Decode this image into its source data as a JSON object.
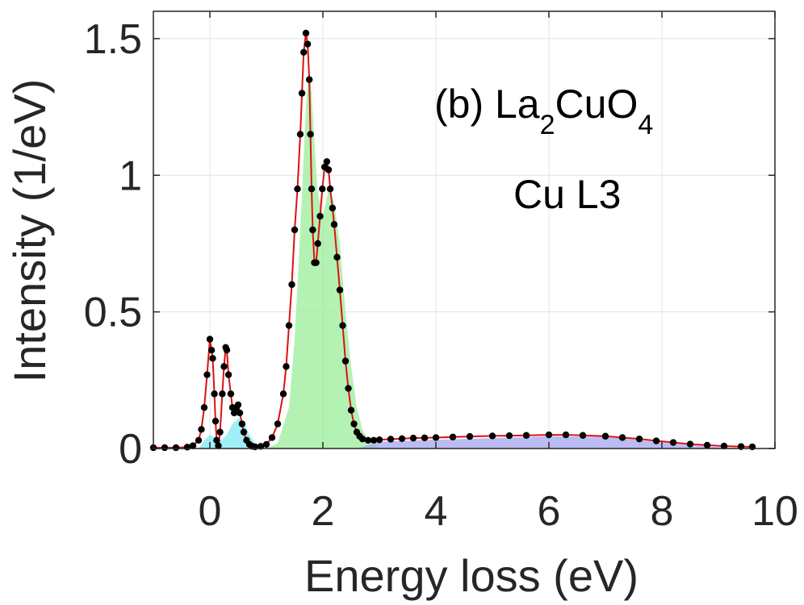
{
  "chart_data": {
    "type": "line",
    "xlabel": "Energy loss (eV)",
    "ylabel": "Intensity (1/eV)",
    "xlim": [
      -1,
      10
    ],
    "ylim": [
      0,
      1.6
    ],
    "xticks": [
      0,
      2,
      4,
      6,
      8,
      10
    ],
    "yticks": [
      0,
      0.5,
      1,
      1.5
    ],
    "xtick_labels": [
      "0",
      "2",
      "4",
      "6",
      "8",
      "10"
    ],
    "ytick_labels": [
      "0",
      "0.5",
      "1",
      "1.5"
    ],
    "grid": true,
    "annotation": {
      "prefix": "(b) La",
      "sub1": "2",
      "mid": "CuO",
      "sub2": "4",
      "line2": "Cu L3"
    },
    "components": [
      {
        "color": "#7fe9f5",
        "x": [
          -0.2,
          -0.1,
          0.0,
          0.1,
          0.2,
          0.3,
          0.35,
          0.4,
          0.5,
          0.55,
          0.6,
          0.7,
          0.8,
          0.9
        ],
        "values": [
          0,
          0.03,
          0.05,
          0.04,
          0.03,
          0.05,
          0.07,
          0.09,
          0.11,
          0.11,
          0.1,
          0.05,
          0.02,
          0
        ]
      },
      {
        "color": "#99ee99",
        "x": [
          1.0,
          1.2,
          1.4,
          1.5,
          1.6,
          1.7,
          1.75,
          1.8,
          1.9,
          2.0,
          2.1,
          2.2,
          2.3,
          2.4,
          2.5,
          2.6,
          2.7,
          2.8,
          3.0
        ],
        "values": [
          0,
          0.02,
          0.15,
          0.4,
          0.8,
          1.25,
          1.4,
          1.3,
          0.95,
          0.85,
          0.95,
          0.9,
          0.75,
          0.5,
          0.3,
          0.15,
          0.07,
          0.03,
          0
        ]
      },
      {
        "color": "#a6a6f0",
        "x": [
          2.6,
          3.0,
          4.0,
          5.0,
          6.0,
          7.0,
          7.5,
          8.0,
          8.5,
          9.0,
          9.5
        ],
        "values": [
          0,
          0.025,
          0.032,
          0.038,
          0.045,
          0.042,
          0.033,
          0.022,
          0.012,
          0.005,
          0
        ]
      }
    ],
    "series": [
      {
        "style": "red line with black markers",
        "line_color": "#dd1111",
        "marker_color": "#000000",
        "x": [
          -1.0,
          -0.8,
          -0.6,
          -0.4,
          -0.3,
          -0.2,
          -0.15,
          -0.1,
          -0.05,
          0.0,
          0.03,
          0.05,
          0.08,
          0.1,
          0.12,
          0.15,
          0.18,
          0.22,
          0.25,
          0.28,
          0.3,
          0.33,
          0.37,
          0.4,
          0.43,
          0.47,
          0.5,
          0.53,
          0.57,
          0.6,
          0.65,
          0.7,
          0.75,
          0.8,
          0.9,
          1.0,
          1.1,
          1.2,
          1.3,
          1.35,
          1.4,
          1.45,
          1.5,
          1.55,
          1.6,
          1.63,
          1.66,
          1.7,
          1.73,
          1.76,
          1.78,
          1.8,
          1.82,
          1.85,
          1.88,
          1.91,
          1.95,
          1.99,
          2.03,
          2.07,
          2.1,
          2.13,
          2.17,
          2.2,
          2.25,
          2.3,
          2.35,
          2.4,
          2.45,
          2.5,
          2.55,
          2.6,
          2.65,
          2.7,
          2.8,
          2.9,
          3.0,
          3.2,
          3.4,
          3.6,
          3.8,
          4.0,
          4.3,
          4.6,
          5.0,
          5.3,
          5.6,
          6.0,
          6.3,
          6.6,
          7.0,
          7.3,
          7.6,
          7.9,
          8.2,
          8.5,
          8.8,
          9.1,
          9.4,
          9.6
        ],
        "values": [
          0.003,
          0.003,
          0.003,
          0.005,
          0.01,
          0.03,
          0.07,
          0.15,
          0.27,
          0.4,
          0.36,
          0.33,
          0.2,
          0.1,
          0.03,
          0.01,
          0.06,
          0.2,
          0.3,
          0.37,
          0.36,
          0.27,
          0.2,
          0.15,
          0.13,
          0.15,
          0.16,
          0.13,
          0.09,
          0.06,
          0.03,
          0.015,
          0.008,
          0.006,
          0.008,
          0.015,
          0.04,
          0.09,
          0.2,
          0.3,
          0.45,
          0.6,
          0.8,
          0.95,
          1.15,
          1.3,
          1.45,
          1.52,
          1.48,
          1.35,
          1.15,
          0.95,
          0.8,
          0.68,
          0.68,
          0.75,
          0.85,
          0.95,
          1.03,
          1.05,
          1.02,
          0.95,
          0.88,
          0.82,
          0.7,
          0.58,
          0.45,
          0.32,
          0.22,
          0.14,
          0.09,
          0.06,
          0.045,
          0.035,
          0.03,
          0.03,
          0.032,
          0.034,
          0.036,
          0.038,
          0.039,
          0.04,
          0.042,
          0.044,
          0.046,
          0.047,
          0.048,
          0.05,
          0.05,
          0.048,
          0.045,
          0.04,
          0.035,
          0.028,
          0.022,
          0.016,
          0.012,
          0.009,
          0.007,
          0.006
        ]
      }
    ]
  }
}
